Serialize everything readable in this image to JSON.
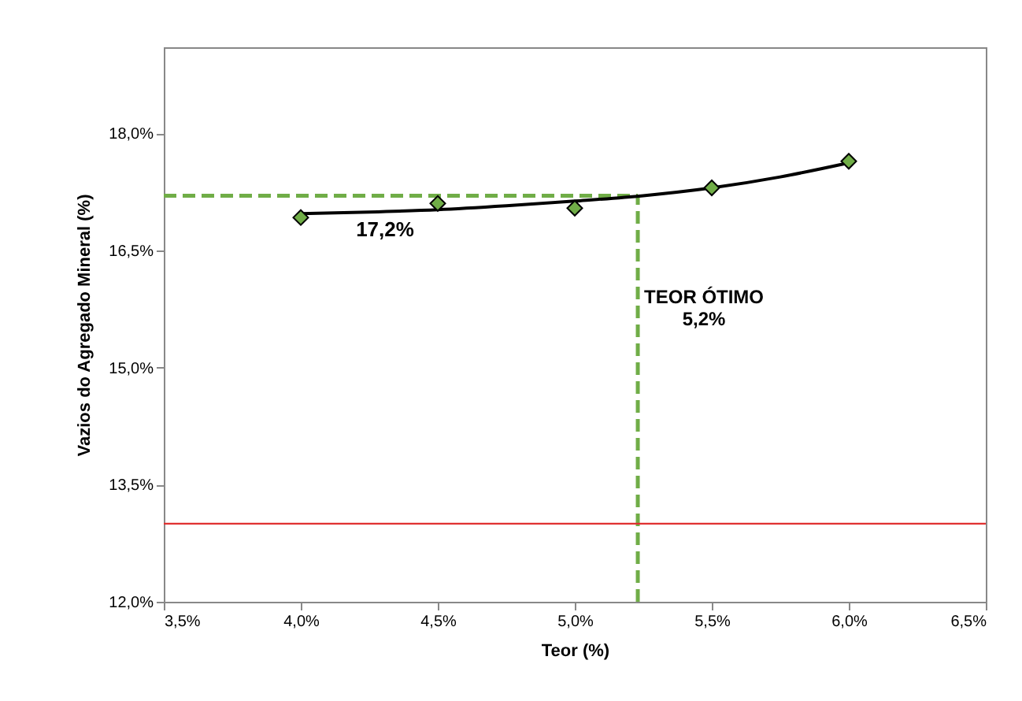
{
  "chart_data": {
    "type": "scatter",
    "xlabel": "Teor (%)",
    "ylabel": "Vazios do Agregado Mineral (%)",
    "series": [
      {
        "type": "line",
        "color": "#000000",
        "x": [
          4.0,
          4.25,
          4.5,
          4.75,
          5.0,
          5.25,
          5.5,
          5.75,
          6.0
        ],
        "values": [
          16.97,
          16.99,
          17.02,
          17.07,
          17.13,
          17.2,
          17.3,
          17.44,
          17.62
        ],
        "marker": "none"
      },
      {
        "color": "#70ad47",
        "x": [
          4.0,
          4.5,
          5.0,
          5.5,
          6.0
        ],
        "values": [
          16.92,
          17.1,
          17.04,
          17.3,
          17.64
        ],
        "marker": "diamond"
      }
    ],
    "xlim": [
      3.5,
      6.5
    ],
    "ylim": [
      12.0,
      19.1
    ],
    "xticks": [
      {
        "value": 3.5,
        "label": "3,5%"
      },
      {
        "value": 4.0,
        "label": "4,0%"
      },
      {
        "value": 4.5,
        "label": "4,5%"
      },
      {
        "value": 5.0,
        "label": "5,0%"
      },
      {
        "value": 5.5,
        "label": "5,5%"
      },
      {
        "value": 6.0,
        "label": "6,0%"
      },
      {
        "value": 6.5,
        "label": "6,5%"
      }
    ],
    "yticks": [
      {
        "value": 12.0,
        "label": "12,0%"
      },
      {
        "value": 13.5,
        "label": "13,5%"
      },
      {
        "value": 15.0,
        "label": "15,0%"
      },
      {
        "value": 16.5,
        "label": "16,5%"
      },
      {
        "value": 18.0,
        "label": "18,0%"
      }
    ],
    "ref_lines": [
      {
        "axis": "y",
        "value": 17.2,
        "label": "17,2%",
        "color": "#70ad47",
        "line_style": "dashed"
      },
      {
        "axis": "x",
        "value": 5.23,
        "label": "TEOR ÓTIMO\n5,2%",
        "color": "#70ad47",
        "line_style": "dashed"
      },
      {
        "axis": "y",
        "value": 13.0,
        "color": "#e03030",
        "line_style": "solid"
      }
    ],
    "grid": false
  }
}
